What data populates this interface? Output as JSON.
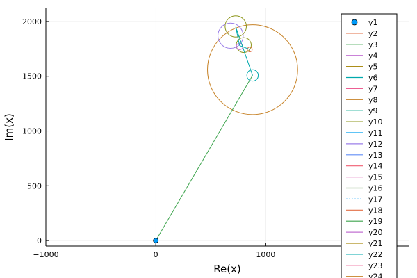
{
  "chart_data": {
    "type": "line",
    "title": "",
    "xlabel": "Re(x)",
    "ylabel": "Im(x)",
    "xlim": [
      -1000,
      2300
    ],
    "ylim": [
      -50,
      2120
    ],
    "xticks": [
      {
        "value": -1000,
        "label": "−1000"
      },
      {
        "value": 0,
        "label": "0"
      },
      {
        "value": 1000,
        "label": "1000"
      }
    ],
    "yticks": [
      {
        "value": 0,
        "label": "0"
      },
      {
        "value": 500,
        "label": "500"
      },
      {
        "value": 1000,
        "label": "1000"
      },
      {
        "value": 1500,
        "label": "1500"
      },
      {
        "value": 2000,
        "label": "2000"
      }
    ],
    "grid": true,
    "legend": "right",
    "marker": {
      "x": 0,
      "y": 0,
      "color": "#009af9"
    },
    "segments": [
      {
        "x1": 0,
        "y1": 0,
        "x2": 880,
        "y2": 1508,
        "color": "#3da44d"
      },
      {
        "x1": 880,
        "y1": 1508,
        "x2": 727,
        "y2": 1950,
        "color": "#00a9ad"
      },
      {
        "x1": 727,
        "y1": 1950,
        "x2": 762,
        "y2": 1780,
        "color": "#00a9ad"
      },
      {
        "x1": 762,
        "y1": 1780,
        "x2": 855,
        "y2": 1745,
        "color": "#00a9ad"
      }
    ],
    "circles": [
      {
        "cx": 880,
        "cy": 1560,
        "r": 410,
        "color": "#c68125"
      },
      {
        "cx": 880,
        "cy": 1508,
        "r": 52,
        "color": "#00a9ad"
      },
      {
        "cx": 727,
        "cy": 1955,
        "r": 97,
        "color": "#8e971d"
      },
      {
        "cx": 680,
        "cy": 1870,
        "r": 115,
        "color": "#9b7fe8"
      },
      {
        "cx": 800,
        "cy": 1785,
        "r": 68,
        "color": "#8e971d"
      },
      {
        "cx": 762,
        "cy": 1772,
        "r": 30,
        "color": "#c271d2"
      },
      {
        "cx": 855,
        "cy": 1745,
        "r": 22,
        "color": "#e26f46"
      }
    ],
    "series": [
      {
        "name": "y1",
        "color": "#009af9",
        "kind": "marker"
      },
      {
        "name": "y2",
        "color": "#e26f46"
      },
      {
        "name": "y3",
        "color": "#3da44d"
      },
      {
        "name": "y4",
        "color": "#c271d2"
      },
      {
        "name": "y5",
        "color": "#ac8e18"
      },
      {
        "name": "y6",
        "color": "#00a9ad"
      },
      {
        "name": "y7",
        "color": "#ed5e93"
      },
      {
        "name": "y8",
        "color": "#c68125"
      },
      {
        "name": "y9",
        "color": "#00a98d"
      },
      {
        "name": "y10",
        "color": "#8e971d"
      },
      {
        "name": "y11",
        "color": "#00a0f0"
      },
      {
        "name": "y12",
        "color": "#9b7fe8"
      },
      {
        "name": "y13",
        "color": "#618df6"
      },
      {
        "name": "y14",
        "color": "#f05f73"
      },
      {
        "name": "y15",
        "color": "#dd64b5"
      },
      {
        "name": "y16",
        "color": "#6b9d59"
      },
      {
        "name": "y17",
        "color": "#009af9",
        "dashed": true
      },
      {
        "name": "y18",
        "color": "#e26f46"
      },
      {
        "name": "y19",
        "color": "#3da44d"
      },
      {
        "name": "y20",
        "color": "#c271d2"
      },
      {
        "name": "y21",
        "color": "#ac8e18"
      },
      {
        "name": "y22",
        "color": "#00a9ad"
      },
      {
        "name": "y23",
        "color": "#ed5e93"
      },
      {
        "name": "y24",
        "color": "#c68125"
      }
    ]
  }
}
